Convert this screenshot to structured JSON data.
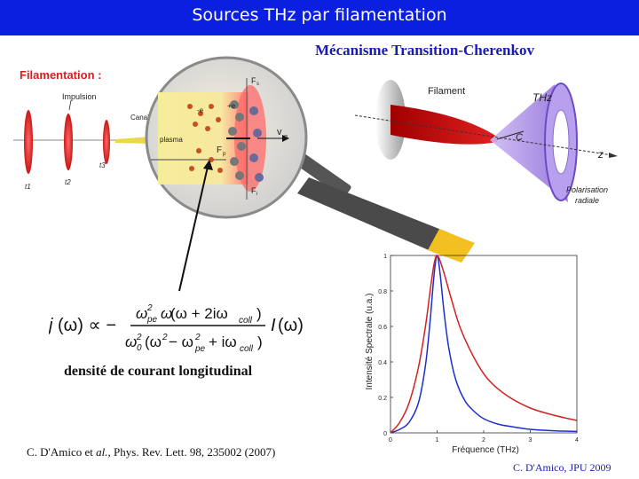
{
  "header": {
    "title": "Sources THz par filamentation"
  },
  "subtitle": "Mécanisme Transition-Cherenkov",
  "filamentation": {
    "title": "Filamentation :",
    "impulsion": "Impulsion",
    "canal": "Canal",
    "t1": "t1",
    "t2": "t2",
    "t3": "t3"
  },
  "magnifier": {
    "plasma": "plasma",
    "e_minus": "-e",
    "e_plus": "+e",
    "vg": "v",
    "vg_sub": "g",
    "fp": "F",
    "fp_sub": "p",
    "fs": "F",
    "fs_sub": "s",
    "fi": "F",
    "fi_sub": "i"
  },
  "cone": {
    "filament": "Filament",
    "thz": "THz",
    "c": "C",
    "z": "z",
    "polarisation": "Polarisation",
    "radiale": "radiale"
  },
  "equation": {
    "description": "densité  de courant longitudinal"
  },
  "citation": {
    "authors": "C. D'Amico et ",
    "et_al": "al.",
    "rest": ", Phys. Rev. Lett. 98, 235002 (2007)"
  },
  "footer": "C. D'Amico, JPU 2009",
  "chart_data": {
    "type": "line",
    "xlabel": "Fréquence (THz)",
    "ylabel": "Intensité Spectrale (u.a.)",
    "xlim": [
      0,
      4
    ],
    "ylim": [
      0,
      1
    ],
    "xticks": [
      "0",
      "1",
      "2",
      "3",
      "4"
    ],
    "yticks": [
      "0",
      "0.2",
      "0.4",
      "0.6",
      "0.8",
      "1"
    ],
    "grid": false,
    "series": [
      {
        "color": "#1a2fd0",
        "x": [
          0,
          0.2,
          0.4,
          0.6,
          0.75,
          0.85,
          0.92,
          0.97,
          1.0,
          1.03,
          1.08,
          1.15,
          1.25,
          1.4,
          1.6,
          1.8,
          2.0,
          2.3,
          2.6,
          3.0,
          3.5,
          4.0
        ],
        "y": [
          0,
          0.02,
          0.06,
          0.17,
          0.38,
          0.63,
          0.85,
          0.97,
          1.0,
          0.97,
          0.86,
          0.68,
          0.48,
          0.3,
          0.18,
          0.12,
          0.08,
          0.05,
          0.035,
          0.02,
          0.012,
          0.008
        ]
      },
      {
        "color": "#d42020",
        "x": [
          0,
          0.2,
          0.4,
          0.6,
          0.75,
          0.85,
          0.92,
          0.97,
          1.0,
          1.05,
          1.15,
          1.3,
          1.5,
          1.8,
          2.1,
          2.5,
          3.0,
          3.5,
          4.0
        ],
        "y": [
          0,
          0.06,
          0.17,
          0.37,
          0.6,
          0.8,
          0.93,
          0.99,
          1.0,
          0.98,
          0.9,
          0.76,
          0.59,
          0.42,
          0.3,
          0.21,
          0.14,
          0.1,
          0.07
        ]
      }
    ]
  }
}
